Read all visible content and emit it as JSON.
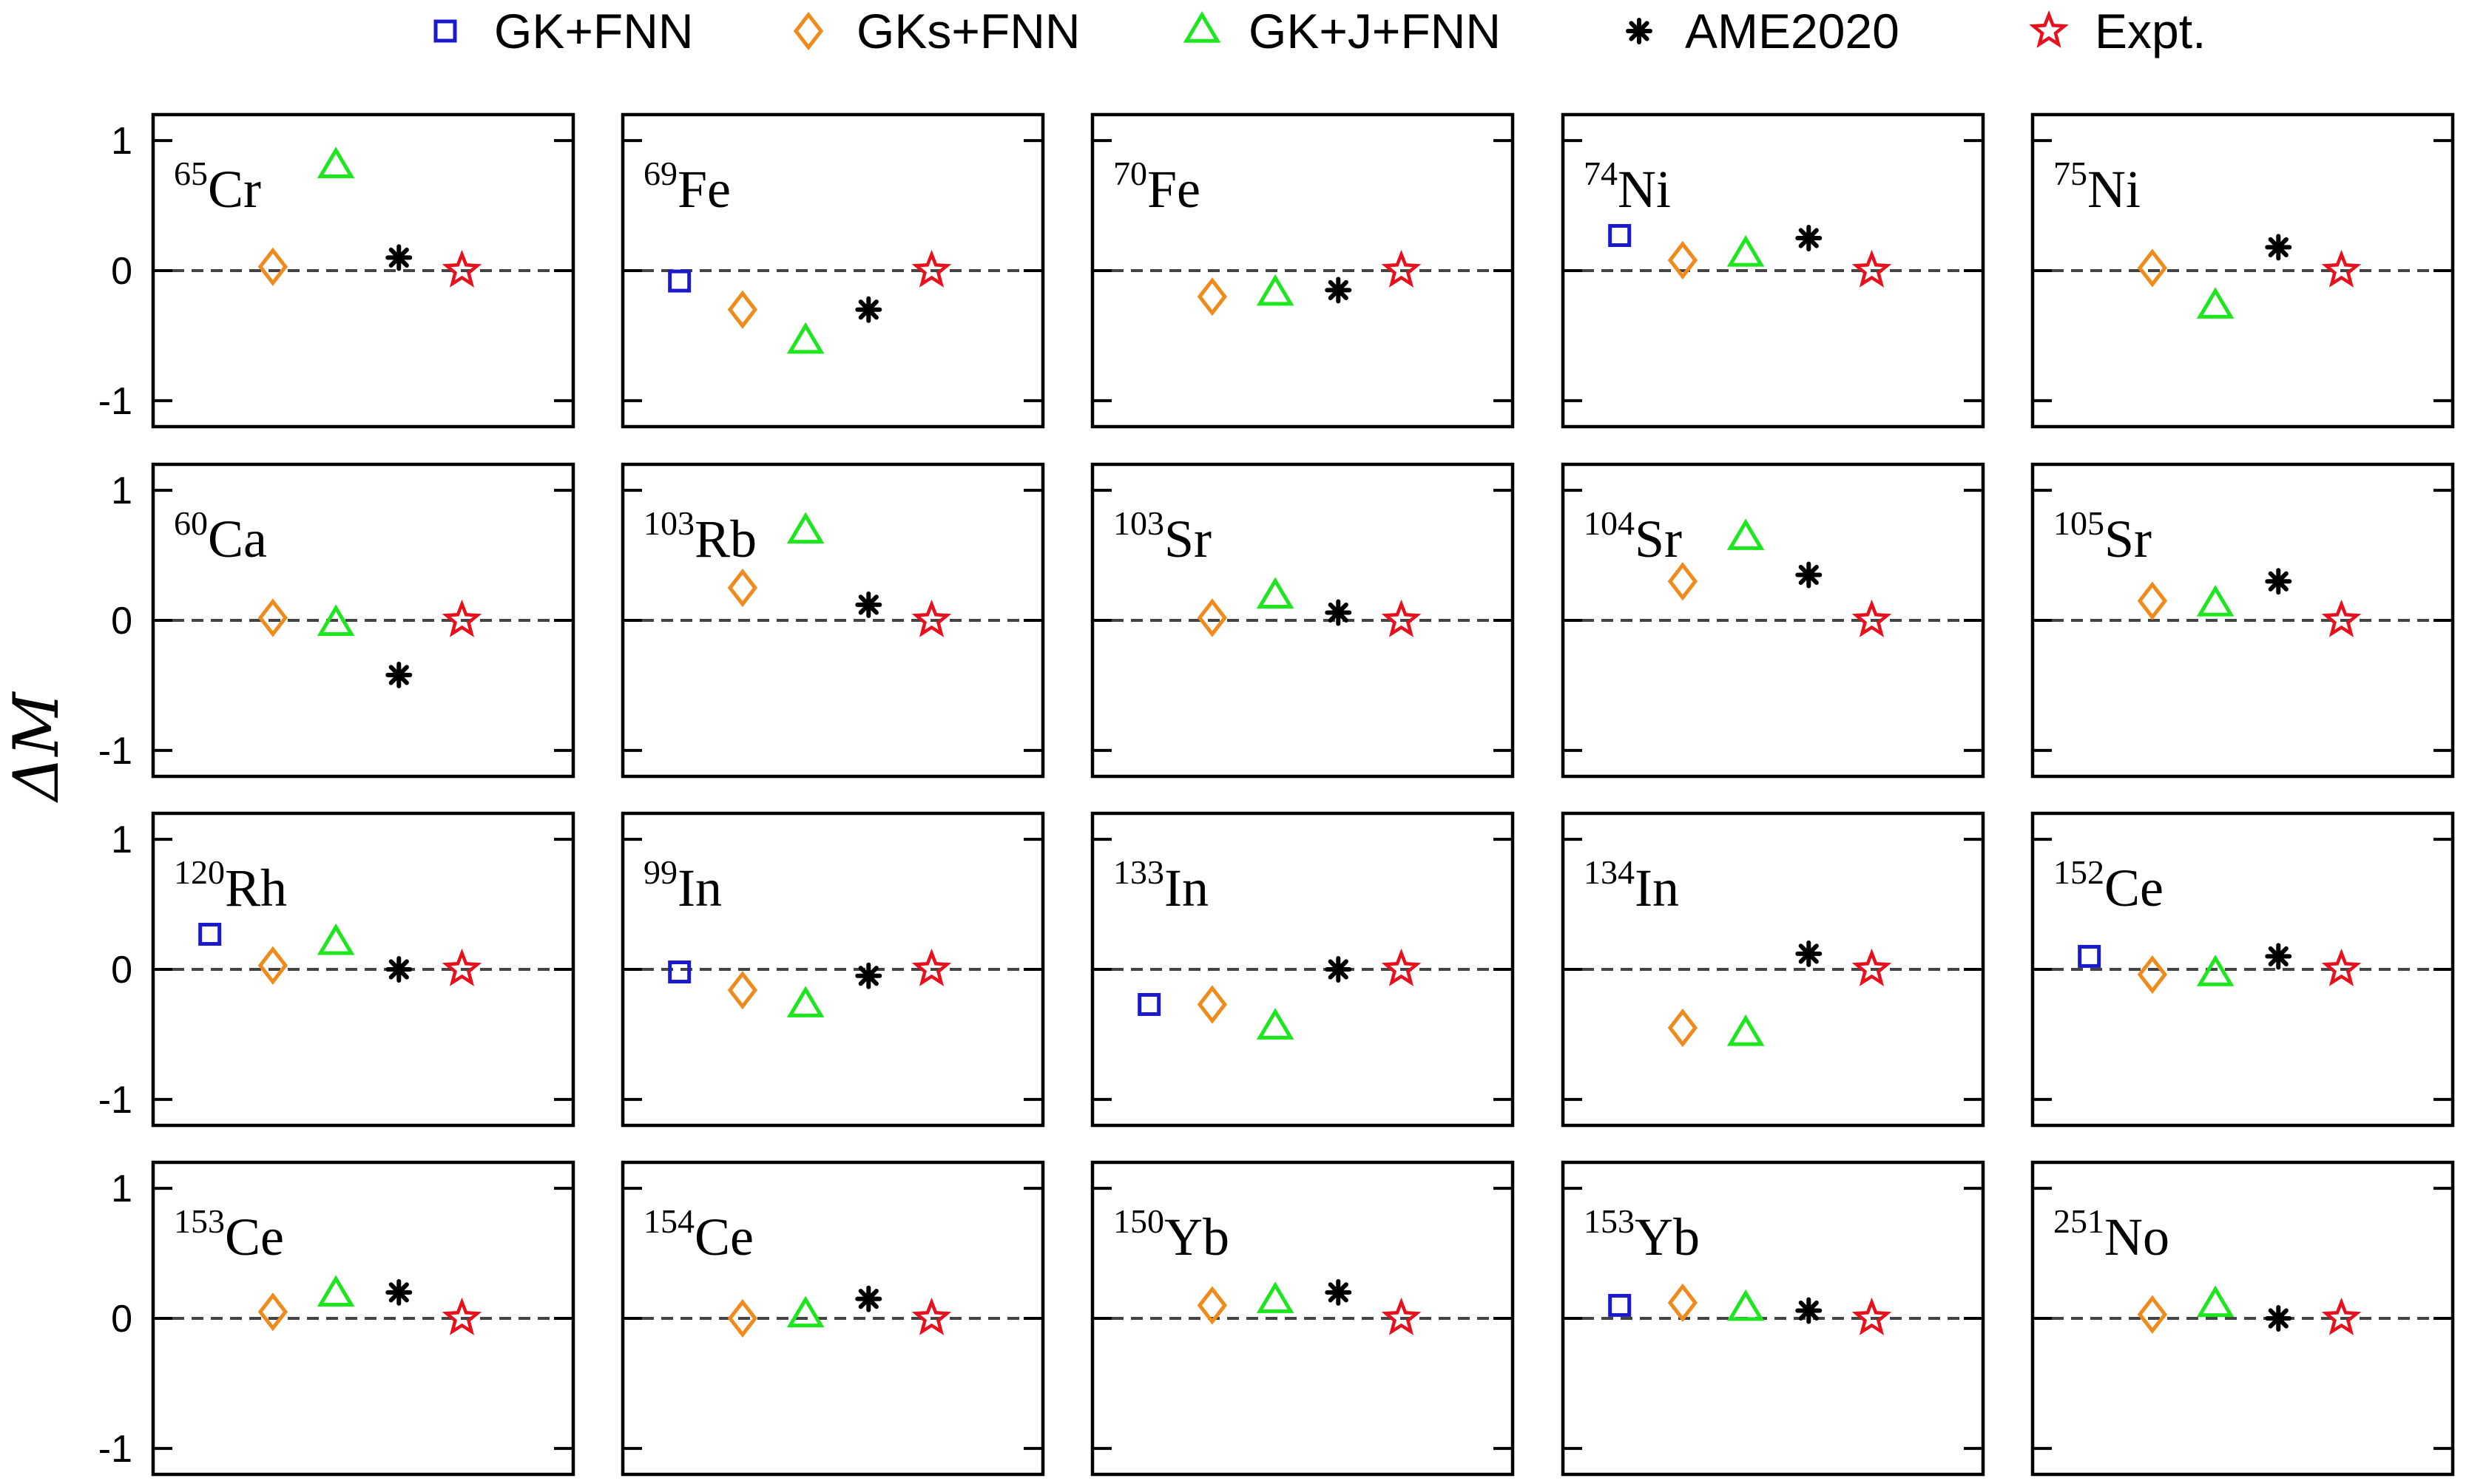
{
  "chart_data": {
    "type": "scatter",
    "ylabel": "ΔM",
    "xlabel": "",
    "ylim": [
      -1.2,
      1.2
    ],
    "yticks": [
      "1",
      "0",
      "-1"
    ],
    "grid": false,
    "legend_position": "top",
    "series": [
      {
        "name": "GK+FNN",
        "marker": "square",
        "color": "#1a1acc"
      },
      {
        "name": "GKs+FNN",
        "marker": "diamond",
        "color": "#f08a1a"
      },
      {
        "name": "GK+J+FNN",
        "marker": "triangle",
        "color": "#1ee61e"
      },
      {
        "name": "AME2020",
        "marker": "asterisk",
        "color": "#000000"
      },
      {
        "name": "Expt.",
        "marker": "star",
        "color": "#e8101c"
      }
    ],
    "panels": [
      {
        "mass": "65",
        "element": "Cr",
        "values": [
          null,
          0.03,
          0.8,
          0.1,
          0.0
        ]
      },
      {
        "mass": "69",
        "element": "Fe",
        "values": [
          -0.08,
          -0.3,
          -0.55,
          -0.3,
          0.0
        ]
      },
      {
        "mass": "70",
        "element": "Fe",
        "values": [
          null,
          -0.2,
          -0.18,
          -0.15,
          0.0
        ]
      },
      {
        "mass": "74",
        "element": "Ni",
        "values": [
          0.27,
          0.08,
          0.12,
          0.25,
          0.0
        ]
      },
      {
        "mass": "75",
        "element": "Ni",
        "values": [
          null,
          0.02,
          -0.28,
          0.18,
          0.0
        ]
      },
      {
        "mass": "60",
        "element": "Ca",
        "values": [
          null,
          0.02,
          -0.03,
          -0.42,
          0.0
        ]
      },
      {
        "mass": "103",
        "element": "Rb",
        "values": [
          null,
          0.25,
          0.68,
          0.12,
          0.0
        ]
      },
      {
        "mass": "103",
        "element": "Sr",
        "values": [
          null,
          0.02,
          0.18,
          0.06,
          0.0
        ]
      },
      {
        "mass": "104",
        "element": "Sr",
        "values": [
          null,
          0.3,
          0.63,
          0.35,
          0.0
        ]
      },
      {
        "mass": "105",
        "element": "Sr",
        "values": [
          null,
          0.15,
          0.12,
          0.3,
          0.0
        ]
      },
      {
        "mass": "120",
        "element": "Rh",
        "values": [
          0.27,
          0.03,
          0.2,
          0.0,
          0.0
        ]
      },
      {
        "mass": "99",
        "element": "In",
        "values": [
          -0.02,
          -0.16,
          -0.28,
          -0.05,
          0.0
        ]
      },
      {
        "mass": "133",
        "element": "In",
        "values": [
          -0.27,
          -0.27,
          -0.45,
          0.0,
          0.0
        ]
      },
      {
        "mass": "134",
        "element": "In",
        "values": [
          null,
          -0.45,
          -0.5,
          0.12,
          0.0
        ]
      },
      {
        "mass": "152",
        "element": "Ce",
        "values": [
          0.1,
          -0.04,
          -0.04,
          0.1,
          0.0
        ]
      },
      {
        "mass": "153",
        "element": "Ce",
        "values": [
          null,
          0.05,
          0.18,
          0.2,
          0.0
        ]
      },
      {
        "mass": "154",
        "element": "Ce",
        "values": [
          null,
          0.0,
          0.02,
          0.15,
          0.0
        ]
      },
      {
        "mass": "150",
        "element": "Yb",
        "values": [
          null,
          0.1,
          0.13,
          0.2,
          0.0
        ]
      },
      {
        "mass": "153",
        "element": "Yb",
        "values": [
          0.1,
          0.12,
          0.07,
          0.06,
          0.0
        ]
      },
      {
        "mass": "251",
        "element": "No",
        "values": [
          null,
          0.03,
          0.1,
          0.0,
          0.0
        ]
      }
    ]
  }
}
